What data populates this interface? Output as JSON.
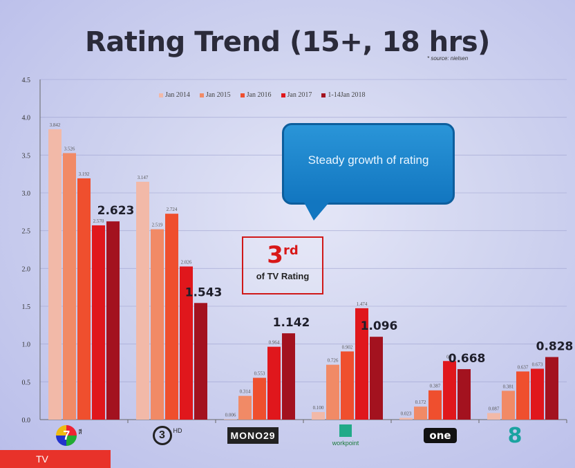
{
  "title": "Rating Trend (15+, 18 hrs)",
  "source": "* source: nielsen",
  "bubble_text": "Steady growth of rating",
  "badge": {
    "rank": "3",
    "suffix": "rd",
    "caption": "of TV Rating"
  },
  "footer_tab": "TV",
  "logos": [
    {
      "name": "ch7-logo",
      "text": "7",
      "sub": "สี"
    },
    {
      "name": "ch3-logo",
      "text": "3",
      "sub": "HD"
    },
    {
      "name": "mono29-logo",
      "text": "MONO29"
    },
    {
      "name": "workpoint-logo",
      "text": "workpoint"
    },
    {
      "name": "one-logo",
      "text": "one"
    },
    {
      "name": "ch8-logo",
      "text": "8"
    }
  ],
  "colors": [
    "#f2b9a8",
    "#f18a66",
    "#ef4f2e",
    "#e0171c",
    "#a3121f"
  ],
  "chart_data": {
    "type": "bar",
    "categories": [
      "7HD",
      "3HD",
      "MONO29",
      "Workpoint",
      "ONE",
      "8"
    ],
    "ylim": [
      0,
      4.5
    ],
    "yticks": [
      "0.0",
      "0.5",
      "1.0",
      "1.5",
      "2.0",
      "2.5",
      "3.0",
      "3.5",
      "4.0",
      "4.5"
    ],
    "legend_position": "top",
    "grid": true,
    "series": [
      {
        "name": "Jan 2014",
        "values": [
          3.842,
          3.147,
          0.006,
          0.1,
          0.023,
          0.087
        ]
      },
      {
        "name": "Jan 2015",
        "values": [
          3.526,
          2.519,
          0.314,
          0.726,
          0.172,
          0.381
        ]
      },
      {
        "name": "Jan 2016",
        "values": [
          3.192,
          2.724,
          0.553,
          0.902,
          0.387,
          0.637
        ]
      },
      {
        "name": "Jan 2017",
        "values": [
          2.57,
          2.026,
          0.964,
          1.474,
          0.775,
          0.673
        ]
      },
      {
        "name": "1-14Jan 2018",
        "values": [
          2.623,
          1.543,
          1.142,
          1.096,
          0.668,
          0.828
        ]
      }
    ],
    "data_labels": [
      [
        "3.842",
        "3.526",
        "3.192",
        "2.570",
        "2.623"
      ],
      [
        "3.147",
        "2.519",
        "2.724",
        "2.026",
        "1.543"
      ],
      [
        "0.006",
        "0.314",
        "0.553",
        "0.964",
        "1.142"
      ],
      [
        "0.100",
        "0.726",
        "0.902",
        "1.474",
        "1.096"
      ],
      [
        "0.023",
        "0.172",
        "0.387",
        "0.7",
        "0.668"
      ],
      [
        "0.087",
        "0.381",
        "0.637",
        "0.673",
        "0.828"
      ]
    ]
  }
}
